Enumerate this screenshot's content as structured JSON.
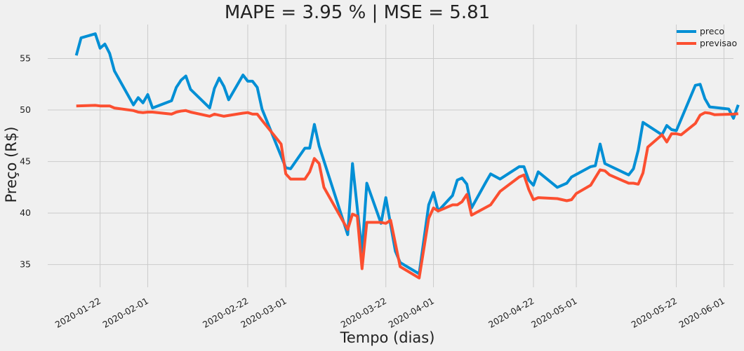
{
  "chart_data": {
    "type": "line",
    "title": "MAPE = 3.95 % | MSE = 5.81",
    "xlabel": "Tempo (dias)",
    "ylabel": "Preço (R$)",
    "xlim": [
      "2020-01-11",
      "2020-06-03"
    ],
    "ylim": [
      32.8,
      58.3
    ],
    "grid": true,
    "legend_position": "top-right",
    "x_ticks": [
      "2020-01-22",
      "2020-02-01",
      "2020-02-22",
      "2020-03-01",
      "2020-03-22",
      "2020-04-01",
      "2020-04-22",
      "2020-05-01",
      "2020-05-22",
      "2020-06-01"
    ],
    "y_ticks": [
      35,
      40,
      45,
      50,
      55
    ],
    "series": [
      {
        "name": "preco",
        "color": "#008fd5",
        "points": [
          [
            "2020-01-17",
            55.3
          ],
          [
            "2020-01-18",
            57.0
          ],
          [
            "2020-01-21",
            57.4
          ],
          [
            "2020-01-22",
            56.0
          ],
          [
            "2020-01-23",
            56.4
          ],
          [
            "2020-01-24",
            55.5
          ],
          [
            "2020-01-25",
            53.8
          ],
          [
            "2020-01-29",
            50.5
          ],
          [
            "2020-01-30",
            51.2
          ],
          [
            "2020-01-31",
            50.7
          ],
          [
            "2020-02-01",
            51.5
          ],
          [
            "2020-02-02",
            50.2
          ],
          [
            "2020-02-06",
            50.9
          ],
          [
            "2020-02-07",
            52.2
          ],
          [
            "2020-02-08",
            52.9
          ],
          [
            "2020-02-09",
            53.3
          ],
          [
            "2020-02-10",
            52.0
          ],
          [
            "2020-02-14",
            50.2
          ],
          [
            "2020-02-15",
            52.1
          ],
          [
            "2020-02-16",
            53.1
          ],
          [
            "2020-02-17",
            52.3
          ],
          [
            "2020-02-18",
            51.0
          ],
          [
            "2020-02-21",
            53.4
          ],
          [
            "2020-02-22",
            52.8
          ],
          [
            "2020-02-23",
            52.8
          ],
          [
            "2020-02-24",
            52.2
          ],
          [
            "2020-02-25",
            50.1
          ],
          [
            "2020-03-01",
            44.4
          ],
          [
            "2020-03-02",
            44.3
          ],
          [
            "2020-03-05",
            46.3
          ],
          [
            "2020-03-06",
            46.3
          ],
          [
            "2020-03-07",
            48.6
          ],
          [
            "2020-03-08",
            46.5
          ],
          [
            "2020-03-14",
            37.9
          ],
          [
            "2020-03-15",
            44.8
          ],
          [
            "2020-03-17",
            36.2
          ],
          [
            "2020-03-18",
            42.9
          ],
          [
            "2020-03-21",
            39.0
          ],
          [
            "2020-03-22",
            41.5
          ],
          [
            "2020-03-24",
            36.3
          ],
          [
            "2020-03-25",
            35.2
          ],
          [
            "2020-03-29",
            34.1
          ],
          [
            "2020-03-31",
            40.8
          ],
          [
            "2020-04-01",
            42.0
          ],
          [
            "2020-04-02",
            40.2
          ],
          [
            "2020-04-05",
            41.7
          ],
          [
            "2020-04-06",
            43.2
          ],
          [
            "2020-04-07",
            43.4
          ],
          [
            "2020-04-08",
            42.8
          ],
          [
            "2020-04-09",
            40.5
          ],
          [
            "2020-04-12",
            43.0
          ],
          [
            "2020-04-13",
            43.8
          ],
          [
            "2020-04-15",
            43.3
          ],
          [
            "2020-04-19",
            44.5
          ],
          [
            "2020-04-20",
            44.5
          ],
          [
            "2020-04-21",
            43.2
          ],
          [
            "2020-04-22",
            42.7
          ],
          [
            "2020-04-23",
            44.0
          ],
          [
            "2020-04-27",
            42.5
          ],
          [
            "2020-04-29",
            42.9
          ],
          [
            "2020-04-30",
            43.5
          ],
          [
            "2020-05-04",
            44.5
          ],
          [
            "2020-05-05",
            44.6
          ],
          [
            "2020-05-06",
            46.7
          ],
          [
            "2020-05-07",
            44.8
          ],
          [
            "2020-05-12",
            43.7
          ],
          [
            "2020-05-13",
            44.3
          ],
          [
            "2020-05-14",
            46.1
          ],
          [
            "2020-05-15",
            48.8
          ],
          [
            "2020-05-19",
            47.6
          ],
          [
            "2020-05-20",
            48.5
          ],
          [
            "2020-05-21",
            48.1
          ],
          [
            "2020-05-22",
            48.0
          ],
          [
            "2020-05-26",
            52.4
          ],
          [
            "2020-05-27",
            52.5
          ],
          [
            "2020-05-28",
            51.1
          ],
          [
            "2020-05-29",
            50.3
          ],
          [
            "2020-06-02",
            50.1
          ],
          [
            "2020-06-03",
            49.2
          ],
          [
            "2020-06-04",
            50.5
          ]
        ]
      },
      {
        "name": "previsao",
        "color": "#fc4f30",
        "points": [
          [
            "2020-01-17",
            50.4
          ],
          [
            "2020-01-21",
            50.45
          ],
          [
            "2020-01-22",
            50.4
          ],
          [
            "2020-01-24",
            50.4
          ],
          [
            "2020-01-25",
            50.2
          ],
          [
            "2020-01-29",
            49.95
          ],
          [
            "2020-01-30",
            49.8
          ],
          [
            "2020-01-31",
            49.75
          ],
          [
            "2020-02-01",
            49.8
          ],
          [
            "2020-02-02",
            49.8
          ],
          [
            "2020-02-06",
            49.6
          ],
          [
            "2020-02-07",
            49.8
          ],
          [
            "2020-02-08",
            49.9
          ],
          [
            "2020-02-09",
            49.95
          ],
          [
            "2020-02-10",
            49.8
          ],
          [
            "2020-02-14",
            49.4
          ],
          [
            "2020-02-15",
            49.6
          ],
          [
            "2020-02-17",
            49.4
          ],
          [
            "2020-02-21",
            49.7
          ],
          [
            "2020-02-22",
            49.75
          ],
          [
            "2020-02-23",
            49.6
          ],
          [
            "2020-02-24",
            49.6
          ],
          [
            "2020-02-25",
            49.0
          ],
          [
            "2020-02-29",
            46.7
          ],
          [
            "2020-03-01",
            43.8
          ],
          [
            "2020-03-02",
            43.3
          ],
          [
            "2020-03-05",
            43.3
          ],
          [
            "2020-03-06",
            44.0
          ],
          [
            "2020-03-07",
            45.3
          ],
          [
            "2020-03-08",
            44.8
          ],
          [
            "2020-03-09",
            42.5
          ],
          [
            "2020-03-14",
            38.4
          ],
          [
            "2020-03-15",
            39.9
          ],
          [
            "2020-03-16",
            39.7
          ],
          [
            "2020-03-17",
            34.6
          ],
          [
            "2020-03-18",
            39.1
          ],
          [
            "2020-03-21",
            39.1
          ],
          [
            "2020-03-22",
            39.0
          ],
          [
            "2020-03-23",
            39.3
          ],
          [
            "2020-03-25",
            34.8
          ],
          [
            "2020-03-29",
            33.7
          ],
          [
            "2020-03-31",
            39.5
          ],
          [
            "2020-04-01",
            40.5
          ],
          [
            "2020-04-02",
            40.2
          ],
          [
            "2020-04-05",
            40.8
          ],
          [
            "2020-04-06",
            40.8
          ],
          [
            "2020-04-07",
            41.1
          ],
          [
            "2020-04-08",
            41.8
          ],
          [
            "2020-04-09",
            39.8
          ],
          [
            "2020-04-13",
            40.8
          ],
          [
            "2020-04-15",
            42.1
          ],
          [
            "2020-04-19",
            43.5
          ],
          [
            "2020-04-20",
            43.7
          ],
          [
            "2020-04-21",
            42.3
          ],
          [
            "2020-04-22",
            41.3
          ],
          [
            "2020-04-23",
            41.5
          ],
          [
            "2020-04-27",
            41.4
          ],
          [
            "2020-04-29",
            41.2
          ],
          [
            "2020-04-30",
            41.3
          ],
          [
            "2020-05-01",
            41.9
          ],
          [
            "2020-05-04",
            42.7
          ],
          [
            "2020-05-06",
            44.2
          ],
          [
            "2020-05-07",
            44.1
          ],
          [
            "2020-05-08",
            43.7
          ],
          [
            "2020-05-12",
            42.9
          ],
          [
            "2020-05-13",
            42.9
          ],
          [
            "2020-05-14",
            42.8
          ],
          [
            "2020-05-15",
            43.9
          ],
          [
            "2020-05-16",
            46.4
          ],
          [
            "2020-05-19",
            47.6
          ],
          [
            "2020-05-20",
            46.9
          ],
          [
            "2020-05-21",
            47.7
          ],
          [
            "2020-05-22",
            47.7
          ],
          [
            "2020-05-23",
            47.6
          ],
          [
            "2020-05-26",
            48.7
          ],
          [
            "2020-05-27",
            49.5
          ],
          [
            "2020-05-28",
            49.75
          ],
          [
            "2020-05-29",
            49.7
          ],
          [
            "2020-05-30",
            49.55
          ],
          [
            "2020-06-03",
            49.6
          ],
          [
            "2020-06-04",
            49.65
          ]
        ]
      }
    ]
  }
}
